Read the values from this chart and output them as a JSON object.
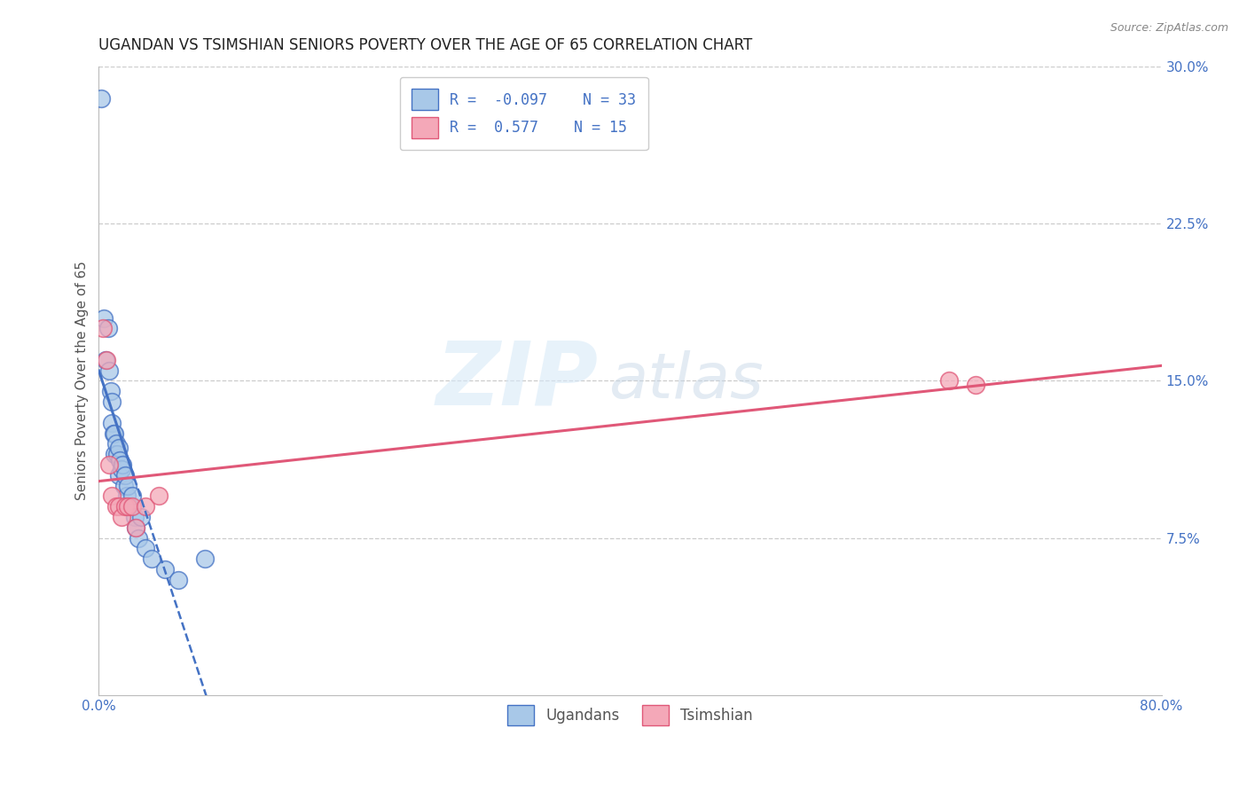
{
  "title": "UGANDAN VS TSIMSHIAN SENIORS POVERTY OVER THE AGE OF 65 CORRELATION CHART",
  "source": "Source: ZipAtlas.com",
  "ylabel": "Seniors Poverty Over the Age of 65",
  "xlim": [
    0.0,
    0.8
  ],
  "ylim": [
    0.0,
    0.3
  ],
  "xticks": [
    0.0,
    0.2,
    0.4,
    0.6,
    0.8
  ],
  "xticklabels": [
    "0.0%",
    "",
    "",
    "",
    "80.0%"
  ],
  "yticks": [
    0.0,
    0.075,
    0.15,
    0.225,
    0.3
  ],
  "yticklabels": [
    "",
    "7.5%",
    "15.0%",
    "22.5%",
    "30.0%"
  ],
  "ugandan_x": [
    0.002,
    0.004,
    0.005,
    0.007,
    0.008,
    0.009,
    0.01,
    0.01,
    0.011,
    0.012,
    0.012,
    0.013,
    0.014,
    0.015,
    0.015,
    0.016,
    0.017,
    0.018,
    0.019,
    0.02,
    0.021,
    0.022,
    0.023,
    0.025,
    0.027,
    0.028,
    0.03,
    0.032,
    0.035,
    0.04,
    0.05,
    0.06,
    0.08
  ],
  "ugandan_y": [
    0.285,
    0.18,
    0.16,
    0.175,
    0.155,
    0.145,
    0.14,
    0.13,
    0.125,
    0.125,
    0.115,
    0.12,
    0.115,
    0.118,
    0.105,
    0.112,
    0.108,
    0.11,
    0.1,
    0.105,
    0.095,
    0.1,
    0.09,
    0.095,
    0.085,
    0.08,
    0.075,
    0.085,
    0.07,
    0.065,
    0.06,
    0.055,
    0.065
  ],
  "tsimshian_x": [
    0.003,
    0.006,
    0.008,
    0.01,
    0.013,
    0.015,
    0.017,
    0.02,
    0.022,
    0.025,
    0.028,
    0.035,
    0.045,
    0.64,
    0.66
  ],
  "tsimshian_y": [
    0.175,
    0.16,
    0.11,
    0.095,
    0.09,
    0.09,
    0.085,
    0.09,
    0.09,
    0.09,
    0.08,
    0.09,
    0.095,
    0.15,
    0.148
  ],
  "ugandan_color": "#a8c8e8",
  "tsimshian_color": "#f4a8b8",
  "ugandan_edge_color": "#4472c4",
  "tsimshian_edge_color": "#e05878",
  "ugandan_line_color": "#4472c4",
  "tsimshian_line_color": "#e05878",
  "R_ugandan": -0.097,
  "N_ugandan": 33,
  "R_tsimshian": 0.577,
  "N_tsimshian": 15,
  "watermark_zip": "ZIP",
  "watermark_atlas": "atlas",
  "background_color": "#ffffff",
  "grid_color": "#cccccc",
  "title_fontsize": 12,
  "axis_label_fontsize": 11,
  "tick_fontsize": 11,
  "tick_color": "#4472c4",
  "legend_text_color": "#4472c4"
}
